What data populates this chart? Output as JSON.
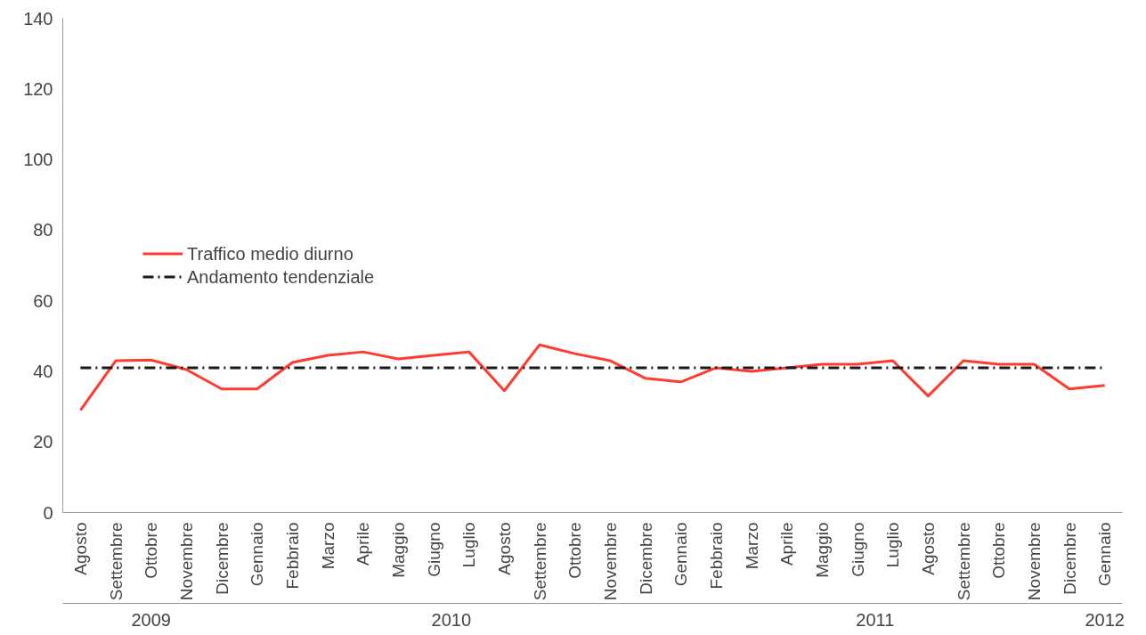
{
  "chart_data": {
    "type": "line",
    "categories": [
      "Agosto",
      "Settembre",
      "Ottobre",
      "Novembre",
      "Dicembre",
      "Gennaio",
      "Febbraio",
      "Marzo",
      "Aprile",
      "Maggio",
      "Giugno",
      "Luglio",
      "Agosto",
      "Settembre",
      "Ottobre",
      "Novembre",
      "Dicembre",
      "Gennaio",
      "Febbraio",
      "Marzo",
      "Aprile",
      "Maggio",
      "Giugno",
      "Luglio",
      "Agosto",
      "Settembre",
      "Ottobre",
      "Novembre",
      "Dicembre",
      "Gennaio"
    ],
    "series": [
      {
        "name": "Traffico medio diurno",
        "color": "#ff3b2f",
        "line_style": "solid",
        "values": [
          29,
          43,
          43.2,
          40.5,
          35,
          35,
          42.5,
          44.5,
          45.5,
          43.5,
          44.5,
          45.5,
          34.5,
          47.5,
          45,
          43,
          38,
          37,
          41,
          40,
          41,
          42,
          42,
          43,
          33,
          43,
          42,
          42,
          35,
          36
        ]
      },
      {
        "name": "Andamento tendenziale",
        "color": "#1a1a1a",
        "line_style": "dashed",
        "values": [
          41,
          41,
          41,
          41,
          41,
          41,
          41,
          41,
          41,
          41,
          41,
          41,
          41,
          41,
          41,
          41,
          41,
          41,
          41,
          41,
          41,
          41,
          41,
          41,
          41,
          41,
          41,
          41,
          41,
          41
        ]
      }
    ],
    "annotations": [
      "2009",
      "2010",
      "2011",
      "2012"
    ],
    "ylim": [
      0,
      140
    ],
    "yticks": [
      0,
      20,
      40,
      60,
      80,
      100,
      120,
      140
    ],
    "grid": false,
    "legend": "left",
    "marker": "none"
  }
}
